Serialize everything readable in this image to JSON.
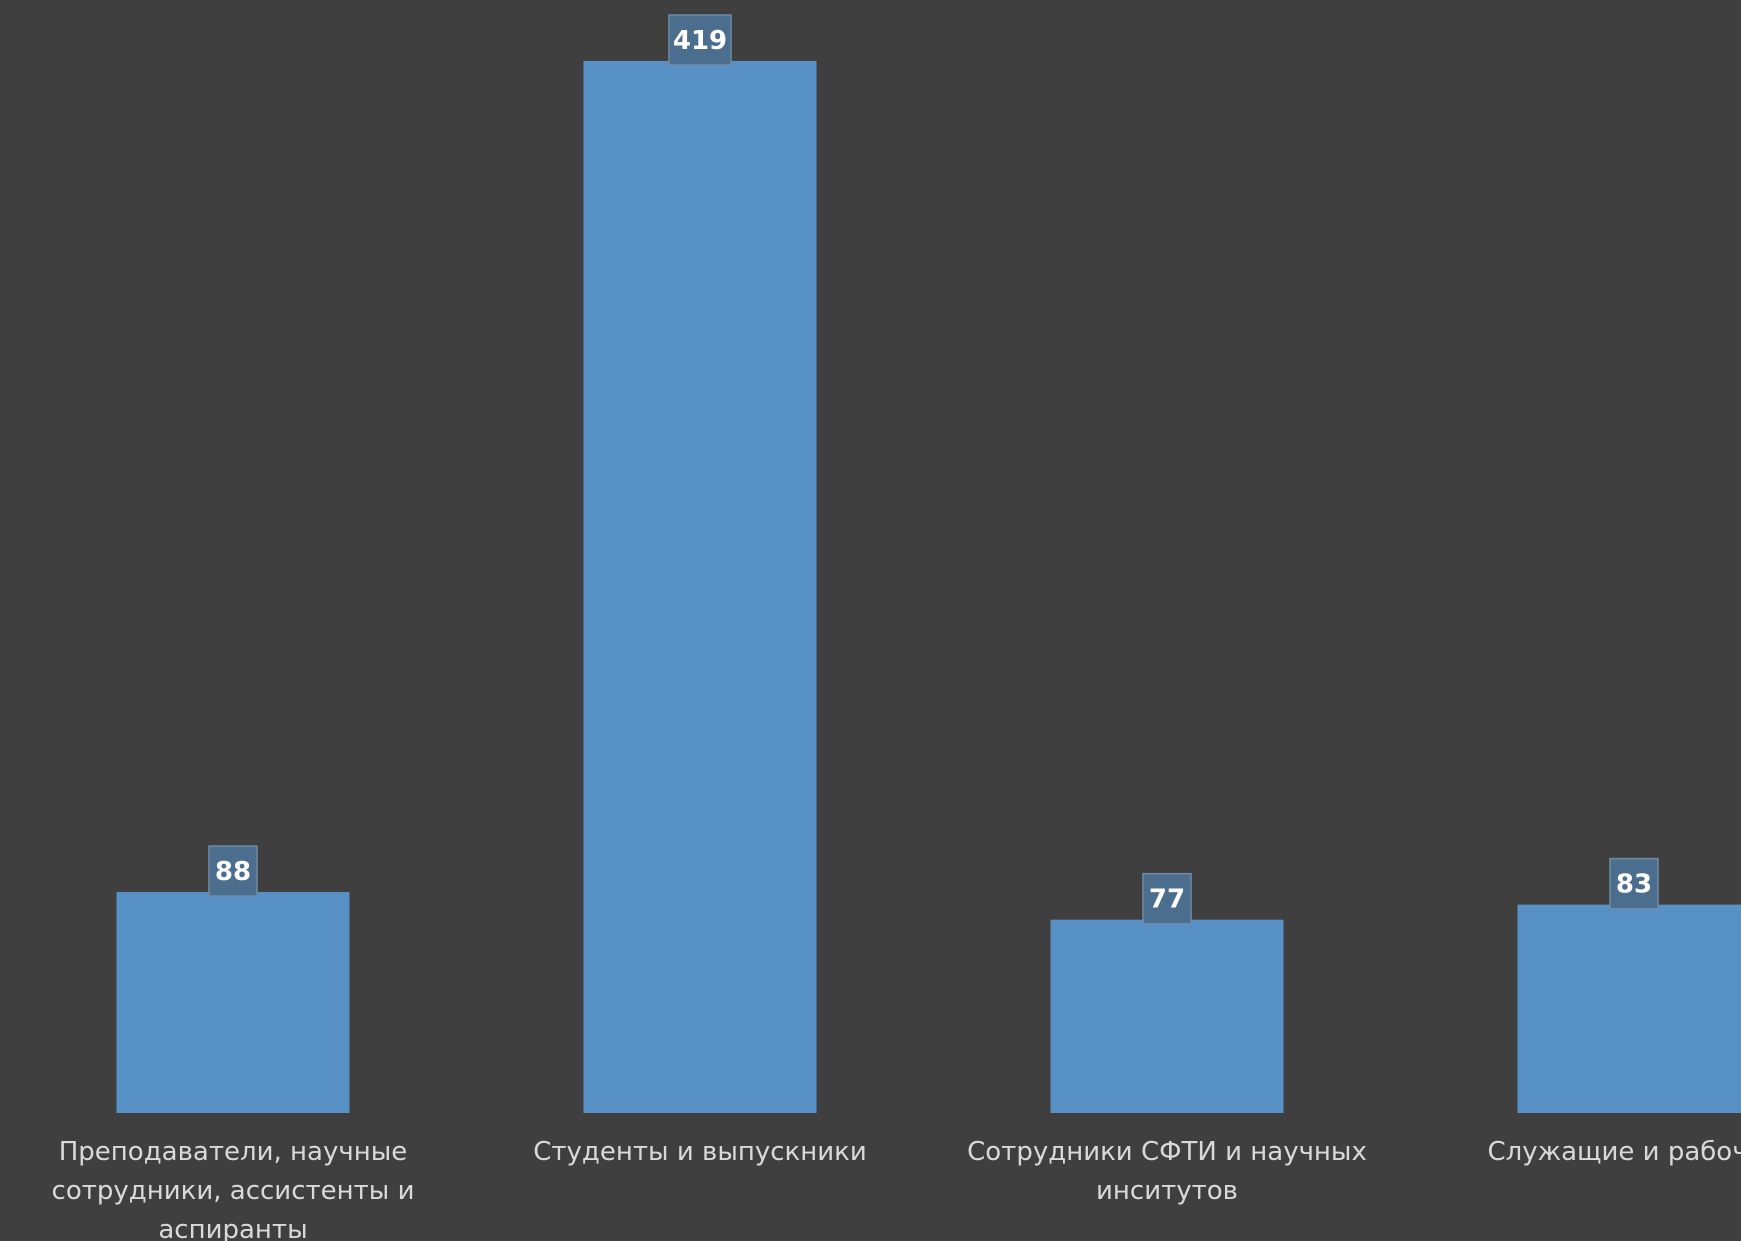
{
  "chart_data": {
    "type": "bar",
    "categories": [
      "Преподаватели, научные сотрудники, ассистенты и аспиранты",
      "Студенты и выпускники",
      "Сотрудники СФТИ и научных инситутов",
      "Служащие и рабочие"
    ],
    "category_label_lines": [
      [
        "Преподаватели, научные",
        "сотрудники, ассистенты и",
        "аспиранты"
      ],
      [
        "Студенты и выпускники"
      ],
      [
        "Сотрудники СФТИ и научных",
        "инситутов"
      ],
      [
        "Служащие и рабочие"
      ]
    ],
    "values": [
      88,
      419,
      77,
      83
    ],
    "ylim": [
      0,
      419
    ],
    "grid": false,
    "legend": "none",
    "colors": {
      "background": "#3f3f3f",
      "bar": "#5891c6",
      "label_box": "#4c6e8e",
      "label_box_border": "#6f8ba5",
      "label_text": "#ffffff",
      "axis_text": "#d9d9d9"
    }
  }
}
